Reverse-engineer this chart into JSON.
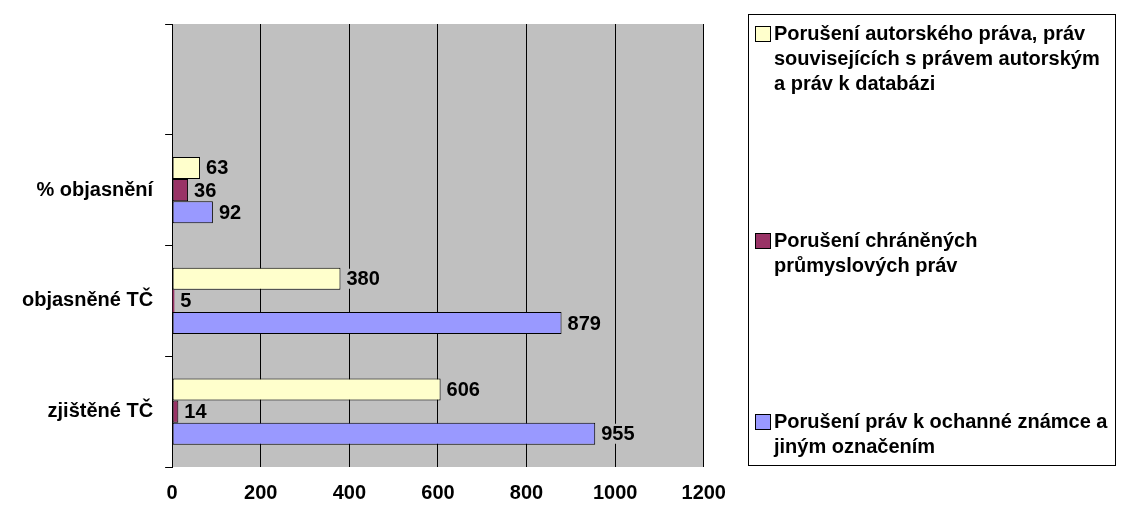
{
  "chart_data": {
    "type": "bar",
    "orientation": "horizontal",
    "categories": [
      null,
      "% objasnění",
      "objasněné TČ",
      "zjištěné TČ"
    ],
    "series": [
      {
        "name": "Porušení autorského práva, práv souvisejících s právem autorským a práv k databázi",
        "color": "#ffffcc",
        "values": [
          null,
          63,
          380,
          606
        ]
      },
      {
        "name": "Porušení chráněných průmyslových práv",
        "color": "#993366",
        "values": [
          null,
          36,
          5,
          14
        ]
      },
      {
        "name": "Porušení práv k ochanné známce a jiným označením",
        "color": "#9999ff",
        "values": [
          null,
          92,
          879,
          955
        ]
      }
    ],
    "xlim": [
      0,
      1200
    ],
    "xticks": [
      0,
      200,
      400,
      600,
      800,
      1000,
      1200
    ],
    "grid": "x",
    "legend": "right",
    "data_labels": true
  }
}
